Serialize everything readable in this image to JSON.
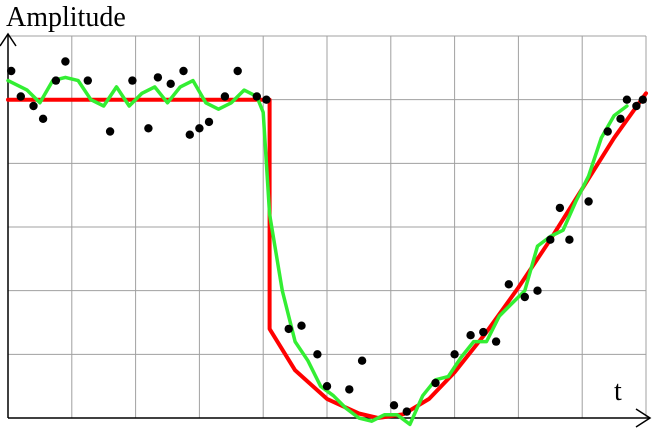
{
  "chart_data": {
    "type": "line",
    "ylabel": "Amplitude",
    "xlabel": "t",
    "xlim": [
      0,
      10
    ],
    "ylim": [
      0,
      6
    ],
    "grid": true,
    "colors": {
      "step": "#ff0000",
      "smoothed": "#33ee33",
      "points": "#000000",
      "grid": "#a0a0a0",
      "axes": "#000000"
    },
    "series": [
      {
        "kind": "line",
        "color": "#ff0000",
        "x": [
          0,
          4.1,
          4.1,
          4.5,
          5.0,
          5.5,
          5.8,
          6.2,
          6.6,
          7.0,
          7.5,
          8.0,
          8.5,
          9.0,
          9.5,
          10.0
        ],
        "y": [
          5.0,
          5.0,
          1.4,
          0.75,
          0.3,
          0.07,
          0.0,
          0.06,
          0.3,
          0.72,
          1.35,
          2.05,
          2.8,
          3.6,
          4.4,
          5.1
        ]
      },
      {
        "kind": "line",
        "color": "#33ee33",
        "x": [
          0,
          0.3,
          0.5,
          0.7,
          0.9,
          1.1,
          1.3,
          1.5,
          1.7,
          1.9,
          2.1,
          2.3,
          2.5,
          2.7,
          2.9,
          3.1,
          3.3,
          3.5,
          3.7,
          3.9,
          4.0,
          4.1,
          4.3,
          4.5,
          4.7,
          4.9,
          5.1,
          5.3,
          5.5,
          5.7,
          5.9,
          6.1,
          6.3,
          6.5,
          6.7,
          6.9,
          7.1,
          7.3,
          7.5,
          7.7,
          7.9,
          8.1,
          8.3,
          8.5,
          8.7,
          8.9,
          9.1,
          9.3,
          9.5,
          9.7
        ],
        "y": [
          5.3,
          5.15,
          4.95,
          5.3,
          5.35,
          5.3,
          5.0,
          4.9,
          5.2,
          4.9,
          5.1,
          5.2,
          4.95,
          5.2,
          5.3,
          4.95,
          4.85,
          4.95,
          5.15,
          5.05,
          4.8,
          3.2,
          2.0,
          1.2,
          0.9,
          0.5,
          0.35,
          0.15,
          0.0,
          -0.05,
          0.05,
          0.05,
          -0.1,
          0.35,
          0.6,
          0.65,
          0.95,
          1.2,
          1.2,
          1.6,
          1.8,
          2.0,
          2.7,
          2.85,
          2.95,
          3.4,
          3.8,
          4.4,
          4.75,
          4.9
        ]
      },
      {
        "kind": "scatter",
        "color": "#000000",
        "x": [
          0.05,
          0.2,
          0.4,
          0.55,
          0.75,
          0.9,
          1.25,
          1.6,
          1.95,
          2.2,
          2.35,
          2.55,
          2.75,
          2.85,
          3.0,
          3.15,
          3.4,
          3.6,
          3.9,
          4.05,
          4.4,
          4.6,
          4.85,
          5.0,
          5.35,
          5.55,
          6.05,
          6.25,
          6.7,
          7.0,
          7.25,
          7.45,
          7.65,
          7.85,
          8.1,
          8.3,
          8.5,
          8.65,
          8.8,
          9.1,
          9.4,
          9.6,
          9.7,
          9.85,
          9.95
        ],
        "y": [
          5.45,
          5.05,
          4.9,
          4.7,
          5.3,
          5.6,
          5.3,
          4.5,
          5.3,
          4.55,
          5.35,
          5.25,
          5.45,
          4.45,
          4.55,
          4.65,
          5.05,
          5.45,
          5.05,
          5.0,
          1.4,
          1.45,
          1.0,
          0.5,
          0.45,
          0.9,
          0.2,
          0.1,
          0.55,
          1.0,
          1.3,
          1.35,
          1.2,
          2.1,
          1.9,
          2.0,
          2.8,
          3.3,
          2.8,
          3.4,
          4.5,
          4.7,
          5.0,
          4.9,
          5.0
        ]
      }
    ]
  }
}
